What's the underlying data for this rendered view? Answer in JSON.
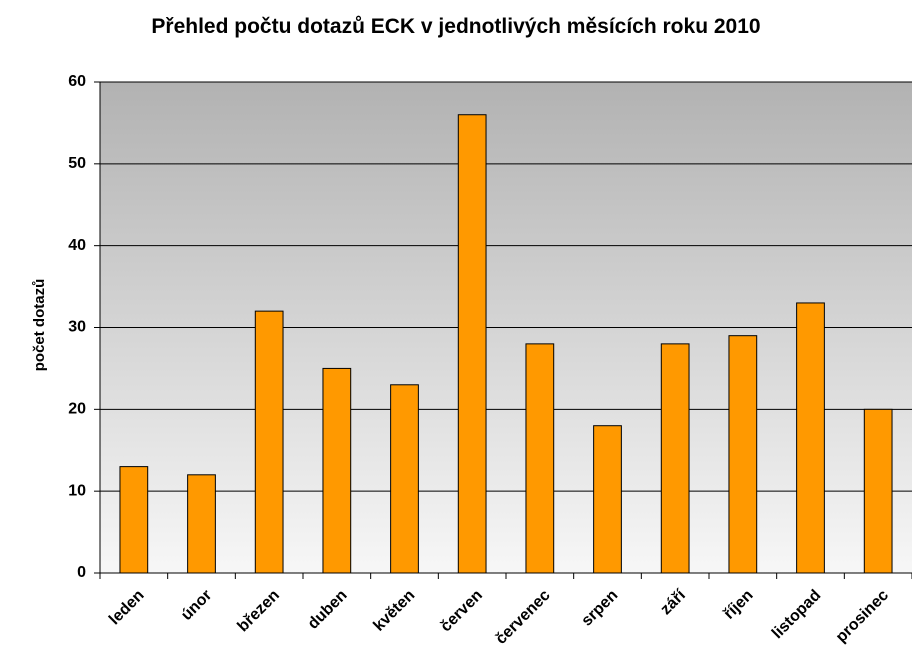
{
  "chart_data": {
    "type": "bar",
    "title": "Přehled počtu dotazů ECK v jednotlivých měsících roku 2010",
    "y_label": "počet dotazů",
    "categories": [
      "leden",
      "únor",
      "březen",
      "duben",
      "květen",
      "červen",
      "červenec",
      "srpen",
      "září",
      "říjen",
      "listopad",
      "prosinec"
    ],
    "values": [
      13,
      12,
      32,
      25,
      23,
      56,
      28,
      18,
      28,
      29,
      33,
      20
    ],
    "color": "#ff9900",
    "ylim": [
      0,
      60
    ],
    "yticks": [
      0,
      10,
      20,
      30,
      40,
      50,
      60
    ],
    "grid": true
  }
}
